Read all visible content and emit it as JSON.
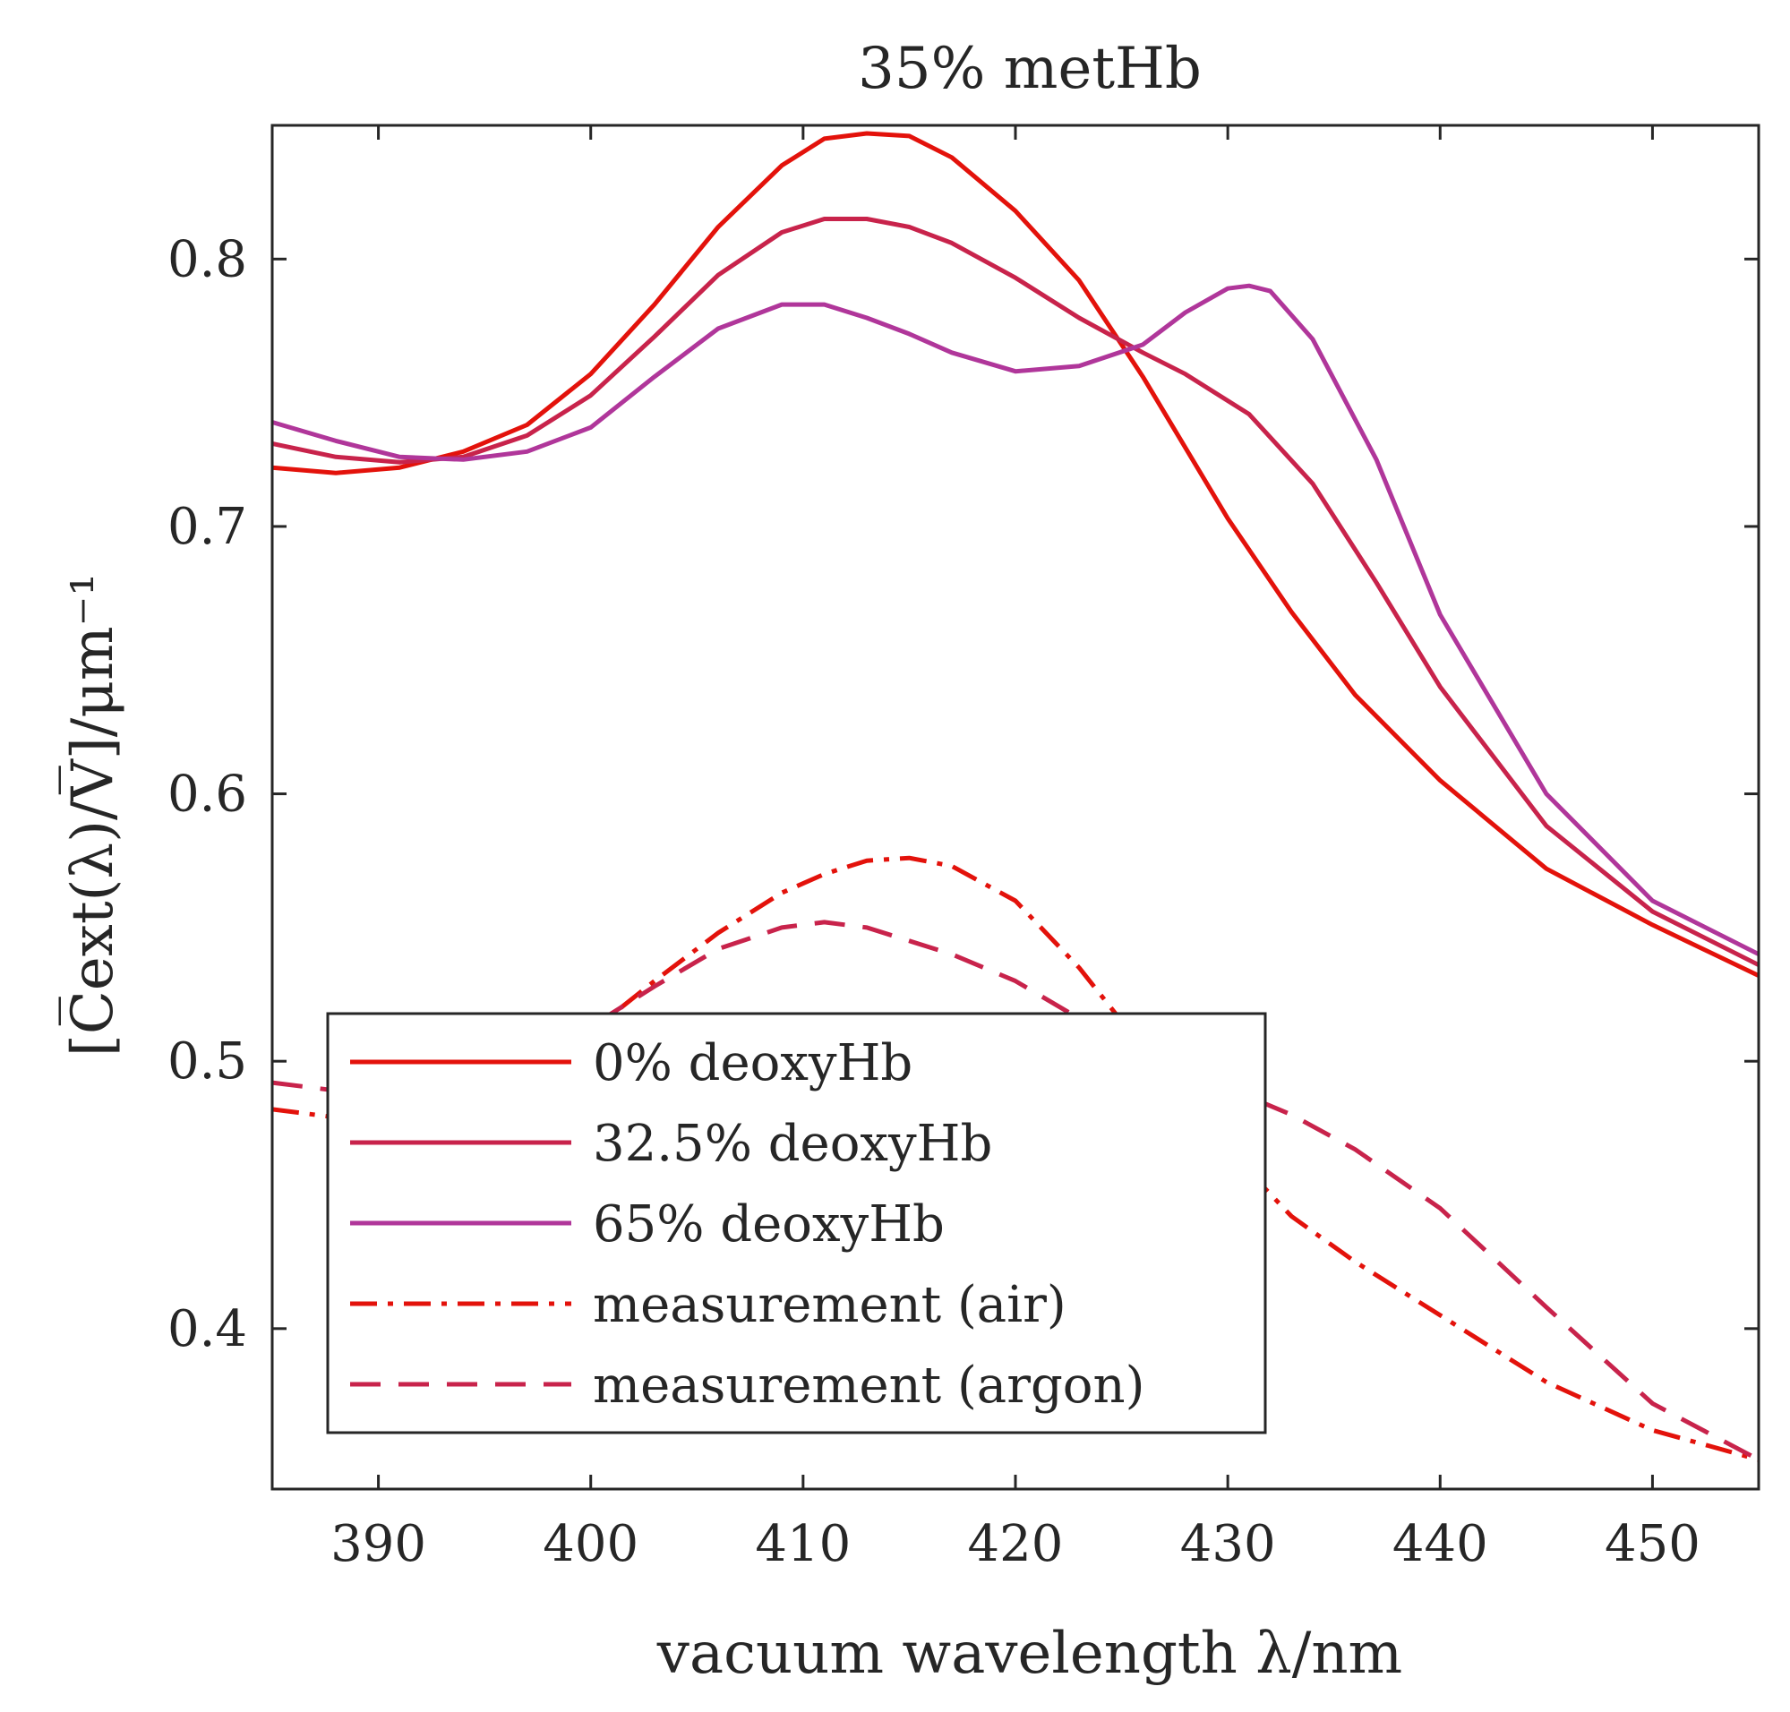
{
  "chart_data": {
    "type": "line",
    "title": "35% metHb",
    "xlabel": "vacuum wavelength λ/nm",
    "ylabel": "[C̅ext(λ)/V̅]/μm⁻¹",
    "xlim": [
      385,
      455
    ],
    "ylim": [
      0.34,
      0.85
    ],
    "xticks": [
      390,
      400,
      410,
      420,
      430,
      440,
      450
    ],
    "yticks": [
      0.4,
      0.5,
      0.6,
      0.7,
      0.8
    ],
    "grid": false,
    "legend_position": "bottom-left",
    "series": [
      {
        "name": "0% deoxyHb",
        "style": "solid",
        "color": "#e3120b",
        "x": [
          385,
          388,
          391,
          394,
          397,
          400,
          403,
          406,
          409,
          411,
          413,
          415,
          417,
          420,
          423,
          426,
          430,
          433,
          436,
          440,
          445,
          450,
          455
        ],
        "y": [
          0.722,
          0.72,
          0.722,
          0.728,
          0.738,
          0.757,
          0.783,
          0.812,
          0.835,
          0.845,
          0.847,
          0.846,
          0.838,
          0.818,
          0.792,
          0.756,
          0.703,
          0.668,
          0.637,
          0.605,
          0.572,
          0.551,
          0.532
        ]
      },
      {
        "name": "32.5% deoxyHb",
        "style": "solid",
        "color": "#c8234b",
        "x": [
          385,
          388,
          391,
          394,
          397,
          400,
          403,
          406,
          409,
          411,
          413,
          415,
          417,
          420,
          423,
          426,
          428,
          431,
          434,
          437,
          440,
          445,
          450,
          455
        ],
        "y": [
          0.731,
          0.726,
          0.724,
          0.726,
          0.734,
          0.749,
          0.771,
          0.794,
          0.81,
          0.815,
          0.815,
          0.812,
          0.806,
          0.793,
          0.778,
          0.765,
          0.757,
          0.742,
          0.716,
          0.679,
          0.64,
          0.588,
          0.556,
          0.536
        ]
      },
      {
        "name": "65% deoxyHb",
        "style": "solid",
        "color": "#b0369a",
        "x": [
          385,
          388,
          391,
          394,
          397,
          400,
          403,
          406,
          409,
          411,
          413,
          415,
          417,
          420,
          423,
          426,
          428,
          430,
          431,
          432,
          434,
          437,
          440,
          445,
          450,
          455
        ],
        "y": [
          0.739,
          0.732,
          0.726,
          0.725,
          0.728,
          0.737,
          0.756,
          0.774,
          0.783,
          0.783,
          0.778,
          0.772,
          0.765,
          0.758,
          0.76,
          0.768,
          0.78,
          0.789,
          0.79,
          0.788,
          0.77,
          0.725,
          0.667,
          0.6,
          0.56,
          0.54
        ]
      },
      {
        "name": "measurement (air)",
        "style": "dashdot",
        "color": "#e3120b",
        "x": [
          385,
          388,
          391,
          394,
          397,
          400,
          403,
          406,
          409,
          411,
          413,
          415,
          417,
          420,
          423,
          426,
          430,
          433,
          436,
          440,
          445,
          450,
          455
        ],
        "y": [
          0.482,
          0.479,
          0.48,
          0.487,
          0.496,
          0.511,
          0.53,
          0.548,
          0.563,
          0.57,
          0.575,
          0.576,
          0.573,
          0.56,
          0.535,
          0.505,
          0.467,
          0.442,
          0.425,
          0.405,
          0.38,
          0.362,
          0.351
        ]
      },
      {
        "name": "measurement (argon)",
        "style": "dashed",
        "color": "#c8234b",
        "x": [
          385,
          388,
          391,
          394,
          397,
          400,
          403,
          406,
          409,
          411,
          413,
          415,
          417,
          420,
          423,
          426,
          430,
          433,
          436,
          440,
          445,
          450,
          455
        ],
        "y": [
          0.492,
          0.489,
          0.49,
          0.494,
          0.5,
          0.513,
          0.528,
          0.542,
          0.55,
          0.552,
          0.55,
          0.545,
          0.54,
          0.53,
          0.516,
          0.502,
          0.49,
          0.48,
          0.467,
          0.445,
          0.408,
          0.372,
          0.351
        ]
      }
    ]
  }
}
